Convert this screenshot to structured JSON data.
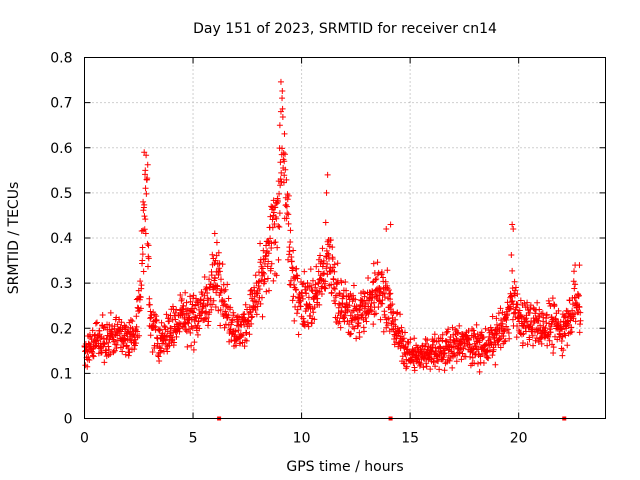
{
  "chart_data": {
    "type": "scatter",
    "title": "Day 151 of 2023, SRMTID for receiver cn14",
    "xlabel": "GPS time / hours",
    "ylabel": "SRMTID / TECUs",
    "xlim": [
      0,
      24
    ],
    "ylim": [
      0,
      0.8
    ],
    "xticks": [
      0,
      5,
      10,
      15,
      20
    ],
    "yticks": [
      0,
      0.1,
      0.2,
      0.3,
      0.4,
      0.5,
      0.6,
      0.7,
      0.8
    ],
    "grid": true,
    "marker": "plus",
    "color": "#ff0000",
    "series": [
      {
        "name": "SRMTID",
        "profile": [
          [
            0.0,
            0.15
          ],
          [
            0.5,
            0.17
          ],
          [
            1.0,
            0.18
          ],
          [
            1.5,
            0.19
          ],
          [
            2.0,
            0.17
          ],
          [
            2.4,
            0.2
          ],
          [
            2.6,
            0.28
          ],
          [
            2.75,
            0.45
          ],
          [
            2.85,
            0.56
          ],
          [
            3.0,
            0.22
          ],
          [
            3.5,
            0.17
          ],
          [
            4.0,
            0.2
          ],
          [
            4.5,
            0.23
          ],
          [
            5.0,
            0.22
          ],
          [
            5.5,
            0.25
          ],
          [
            6.0,
            0.3
          ],
          [
            6.2,
            0.33
          ],
          [
            6.5,
            0.24
          ],
          [
            7.0,
            0.19
          ],
          [
            7.5,
            0.22
          ],
          [
            8.0,
            0.28
          ],
          [
            8.5,
            0.35
          ],
          [
            8.9,
            0.45
          ],
          [
            9.1,
            0.62
          ],
          [
            9.3,
            0.45
          ],
          [
            9.6,
            0.3
          ],
          [
            10.0,
            0.27
          ],
          [
            10.5,
            0.26
          ],
          [
            11.0,
            0.33
          ],
          [
            11.3,
            0.35
          ],
          [
            11.8,
            0.25
          ],
          [
            12.5,
            0.23
          ],
          [
            13.0,
            0.24
          ],
          [
            13.5,
            0.3
          ],
          [
            14.0,
            0.25
          ],
          [
            14.5,
            0.18
          ],
          [
            15.0,
            0.14
          ],
          [
            15.5,
            0.14
          ],
          [
            16.0,
            0.15
          ],
          [
            16.5,
            0.15
          ],
          [
            17.0,
            0.16
          ],
          [
            17.5,
            0.17
          ],
          [
            18.0,
            0.16
          ],
          [
            18.5,
            0.16
          ],
          [
            19.0,
            0.18
          ],
          [
            19.5,
            0.22
          ],
          [
            19.7,
            0.28
          ],
          [
            20.0,
            0.22
          ],
          [
            20.5,
            0.21
          ],
          [
            21.0,
            0.2
          ],
          [
            21.5,
            0.21
          ],
          [
            22.0,
            0.19
          ],
          [
            22.3,
            0.23
          ],
          [
            22.6,
            0.26
          ],
          [
            22.8,
            0.24
          ]
        ],
        "spikes": [
          {
            "x": 2.75,
            "y": 0.59
          },
          {
            "x": 2.8,
            "y": 0.55
          },
          {
            "x": 2.7,
            "y": 0.48
          },
          {
            "x": 6.0,
            "y": 0.41
          },
          {
            "x": 6.1,
            "y": 0.39
          },
          {
            "x": 8.6,
            "y": 0.47
          },
          {
            "x": 8.7,
            "y": 0.45
          },
          {
            "x": 9.1,
            "y": 0.71
          },
          {
            "x": 9.05,
            "y": 0.68
          },
          {
            "x": 9.0,
            "y": 0.65
          },
          {
            "x": 9.2,
            "y": 0.57
          },
          {
            "x": 11.2,
            "y": 0.54
          },
          {
            "x": 11.15,
            "y": 0.5
          },
          {
            "x": 14.1,
            "y": 0.43
          },
          {
            "x": 13.9,
            "y": 0.42
          },
          {
            "x": 19.7,
            "y": 0.43
          },
          {
            "x": 19.75,
            "y": 0.42
          },
          {
            "x": 22.6,
            "y": 0.34
          },
          {
            "x": 22.8,
            "y": 0.34
          }
        ]
      }
    ],
    "zero_markers": [
      6.2,
      14.1,
      22.1
    ],
    "time_range": [
      0.0,
      22.85
    ],
    "sample_step_hours": 0.0125
  }
}
